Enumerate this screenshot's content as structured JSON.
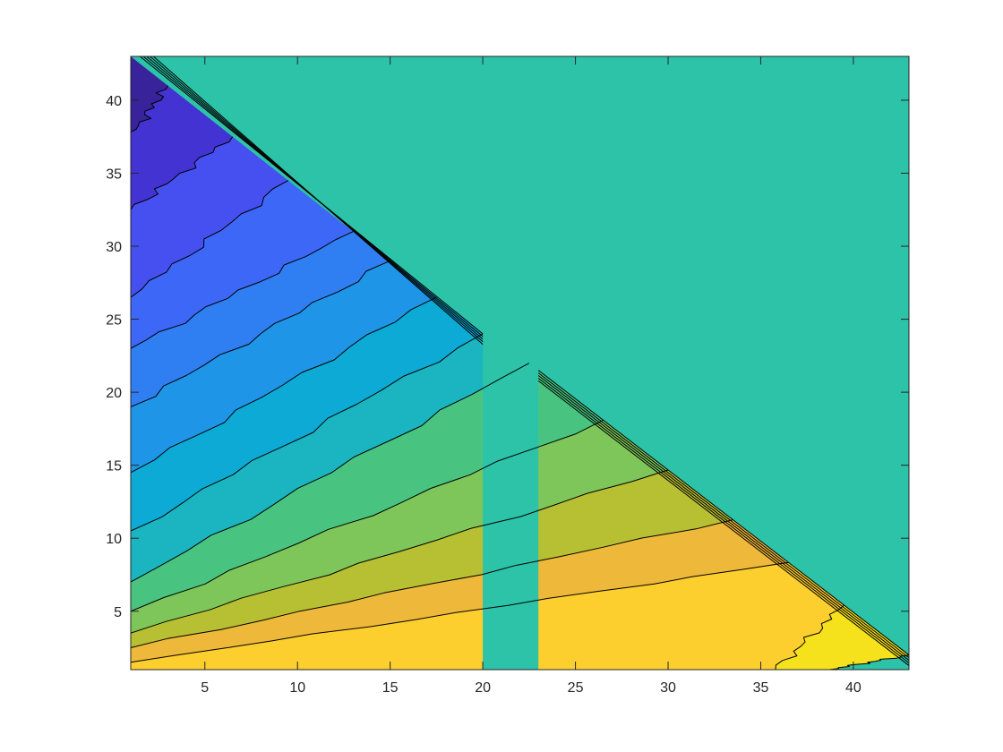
{
  "chart_data": {
    "type": "contourf",
    "title": "",
    "xlabel": "",
    "ylabel": "",
    "xlim": [
      1,
      43
    ],
    "ylim": [
      1,
      43
    ],
    "x_ticks": [
      5,
      10,
      15,
      20,
      25,
      30,
      35,
      40
    ],
    "y_ticks": [
      5,
      10,
      15,
      20,
      25,
      30,
      35,
      40
    ],
    "x_tick_labels": [
      "5",
      "10",
      "15",
      "20",
      "25",
      "30",
      "35",
      "40"
    ],
    "y_tick_labels": [
      "5",
      "10",
      "15",
      "20",
      "25",
      "30",
      "35",
      "40"
    ],
    "grid": false,
    "legend": "none",
    "colormap": "parula",
    "background_region": {
      "description_color": "#2cc3a8",
      "boundary_upper_left": [
        [
          1,
          43
        ],
        [
          20,
          24
        ]
      ],
      "boundary_lower_right": [
        [
          23,
          21.5
        ],
        [
          43,
          2
        ]
      ]
    },
    "contour_bands": [
      {
        "color": "#38239b",
        "top_x": 3.0,
        "bottom_x": 1.0,
        "bottom_y": 37.5
      },
      {
        "color": "#4333d2",
        "top_x": 6.5,
        "bottom_x": 1.0,
        "bottom_y": 32.5
      },
      {
        "color": "#4650f0",
        "top_x": 9.5,
        "bottom_x": 1.0,
        "bottom_y": 26.5
      },
      {
        "color": "#3d67f7",
        "top_x": 13.0,
        "bottom_x": 1.0,
        "bottom_y": 23.0
      },
      {
        "color": "#2f7ff3",
        "top_x": 15.0,
        "bottom_x": 1.0,
        "bottom_y": 19.0
      },
      {
        "color": "#1e95e6",
        "top_x": 17.5,
        "bottom_x": 1.0,
        "bottom_y": 14.5
      },
      {
        "color": "#0caad5",
        "top_x": 20.0,
        "bottom_x": 1.0,
        "bottom_y": 10.5
      },
      {
        "color": "#1ab5c0",
        "top_x": 22.5,
        "bottom_x": 1.0,
        "bottom_y": 7.0
      },
      {
        "color": "#49c480",
        "top_x": 26.5,
        "bottom_x": 1.0,
        "bottom_y": 5.0
      },
      {
        "color": "#7ec65a",
        "top_x": 30.0,
        "bottom_x": 1.0,
        "bottom_y": 3.5
      },
      {
        "color": "#b7bf33",
        "top_x": 33.5,
        "bottom_x": 1.0,
        "bottom_y": 2.5
      },
      {
        "color": "#eeb83a",
        "top_x": 36.5,
        "bottom_x": 1.0,
        "bottom_y": 1.5
      },
      {
        "color": "#fcce2e",
        "top_x": 39.5,
        "bottom_x": 1.0,
        "bottom_y": 1.0
      },
      {
        "color": "#f5e21c",
        "top_x": 43.0,
        "bottom_x": 1.0,
        "bottom_y": 1.0
      }
    ]
  }
}
